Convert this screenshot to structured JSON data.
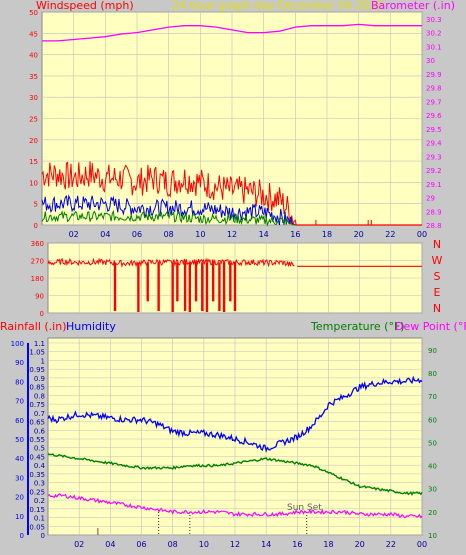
{
  "colors": {
    "background": "#c8c8c8",
    "plot_bg": "#ffffc0",
    "grid": "#c0c0c0",
    "red": "#ff0000",
    "blue": "#0000ff",
    "green": "#008000",
    "magenta": "#ff00ff",
    "dark_blue": "#0000a0",
    "title_yellow": "#e0e000",
    "wind_gust": "#ff0000",
    "wind_avg": "#0000e0",
    "wind_low": "#008000"
  },
  "header": {
    "left": "Windspeed (mph)",
    "center": "24 hour graph day   December 04 2022",
    "right": "Barometer (.in)"
  },
  "direction_letters": [
    "N",
    "W",
    "S",
    "E",
    "N"
  ],
  "bottom_header": {
    "rain": "Rainfall (.in)",
    "humidity": "Humidity",
    "temperature": "Temperature (°F)",
    "dewpoint": "Dew Point (°F)"
  },
  "annotation": "Sun Set",
  "chart_data": [
    {
      "type": "line",
      "name": "wind_and_pressure",
      "x_ticks": [
        "02",
        "04",
        "06",
        "08",
        "10",
        "12",
        "14",
        "16",
        "18",
        "20",
        "22",
        "00"
      ],
      "y_left_ticks": [
        "0",
        "5",
        "10",
        "15",
        "20",
        "25",
        "30",
        "35",
        "40",
        "45",
        "50"
      ],
      "ylim_left": [
        0,
        50
      ],
      "y_right_ticks": [
        "28.8",
        "28.9",
        "29",
        "29.1",
        "29.2",
        "29.3",
        "29.4",
        "29.5",
        "29.6",
        "29.7",
        "29.8",
        "29.9",
        "30",
        "30.1",
        "30.2",
        "30.3"
      ],
      "ylim_right": [
        28.8,
        30.35
      ],
      "xlim": [
        0,
        24
      ],
      "series": [
        {
          "name": "Barometer",
          "axis": "right",
          "x": [
            0,
            1,
            2,
            3,
            4,
            5,
            6,
            7,
            8,
            9,
            10,
            11,
            12,
            13,
            14,
            15,
            16,
            17,
            18,
            19,
            20,
            21,
            22,
            23,
            24
          ],
          "y": [
            30.14,
            30.14,
            30.15,
            30.16,
            30.17,
            30.19,
            30.2,
            30.22,
            30.24,
            30.25,
            30.25,
            30.24,
            30.22,
            30.2,
            30.2,
            30.21,
            30.24,
            30.25,
            30.25,
            30.25,
            30.26,
            30.25,
            30.25,
            30.25,
            30.25
          ]
        },
        {
          "name": "Gust",
          "axis": "left",
          "x": [
            0,
            1,
            2,
            3,
            4,
            5,
            6,
            7,
            8,
            9,
            10,
            11,
            12,
            13,
            14,
            15,
            15.5,
            16,
            17,
            18,
            19,
            20,
            21,
            22,
            23,
            24
          ],
          "y": [
            12,
            12,
            11,
            12,
            11,
            11,
            10,
            11,
            10,
            11,
            10,
            9,
            8,
            8,
            7,
            6,
            4,
            1,
            0,
            0,
            0,
            0,
            0,
            0,
            0,
            0
          ]
        },
        {
          "name": "Average",
          "axis": "left",
          "x": [
            0,
            2,
            4,
            6,
            8,
            10,
            12,
            14,
            15,
            16,
            17,
            24
          ],
          "y": [
            5,
            5,
            5,
            4,
            4,
            4,
            3,
            3,
            2,
            0,
            0,
            0
          ]
        },
        {
          "name": "Low",
          "axis": "left",
          "x": [
            0,
            2,
            4,
            6,
            8,
            10,
            12,
            14,
            15,
            16,
            17,
            24
          ],
          "y": [
            2,
            2,
            2,
            2,
            2,
            1.5,
            1.5,
            1,
            1,
            0,
            0,
            0
          ]
        }
      ]
    },
    {
      "type": "scatter",
      "name": "wind_direction",
      "y_ticks": [
        "0",
        "90",
        "180",
        "270",
        "360"
      ],
      "ylim": [
        0,
        360
      ],
      "xlim": [
        0,
        24
      ],
      "series": [
        {
          "name": "Direction",
          "x": [
            0,
            1,
            2,
            3,
            4,
            5,
            6,
            7,
            8,
            9,
            10,
            11,
            12,
            13,
            14,
            15,
            15.8,
            16,
            24
          ],
          "y": [
            255,
            265,
            260,
            262,
            260,
            255,
            258,
            262,
            260,
            265,
            262,
            262,
            260,
            262,
            258,
            260,
            245,
            240,
            240
          ]
        }
      ]
    },
    {
      "type": "line",
      "name": "temp_humidity_rain",
      "x_ticks": [
        "02",
        "04",
        "06",
        "08",
        "10",
        "12",
        "14",
        "16",
        "18",
        "20",
        "22",
        "00"
      ],
      "y_left_rain_ticks": [
        "0",
        "0.05",
        "0.1",
        "0.15",
        "0.2",
        "0.25",
        "0.3",
        "0.35",
        "0.4",
        "0.45",
        "0.5",
        "0.55",
        "0.6",
        "0.65",
        "0.7",
        "0.75",
        "0.8",
        "0.85",
        "0.9",
        "0.95",
        "1",
        "1.05",
        "1.1"
      ],
      "ylim_rain": [
        0,
        1.1
      ],
      "y_left_humidity_ticks": [
        "0",
        "10",
        "20",
        "30",
        "40",
        "50",
        "60",
        "70",
        "80",
        "90",
        "100"
      ],
      "ylim_humidity": [
        0,
        100
      ],
      "y_right_temp_ticks": [
        "10",
        "20",
        "30",
        "40",
        "50",
        "60",
        "70",
        "80",
        "90"
      ],
      "ylim_temp": [
        10,
        93
      ],
      "xlim": [
        0,
        24
      ],
      "series": [
        {
          "name": "Humidity",
          "axis": "humidity",
          "x": [
            0,
            0.5,
            1,
            2,
            3,
            4,
            5,
            6,
            7,
            8,
            9,
            10,
            11,
            12,
            13,
            14,
            15,
            16,
            16.8,
            17.5,
            18,
            19,
            20,
            21,
            22,
            23,
            24
          ],
          "y": [
            61,
            60,
            61,
            63,
            62,
            61,
            60,
            60,
            58,
            54,
            53,
            53,
            52,
            50,
            48,
            45,
            48,
            51,
            56,
            62,
            68,
            72,
            77,
            79,
            80,
            80,
            81
          ]
        },
        {
          "name": "Temperature",
          "axis": "temp",
          "x": [
            0,
            1,
            2,
            3,
            4,
            5,
            6,
            7,
            8,
            9,
            10,
            11,
            12,
            13,
            14,
            15,
            16,
            17,
            18,
            19,
            20,
            21,
            22,
            23,
            24
          ],
          "y": [
            45,
            44,
            43,
            42,
            41,
            40,
            39,
            39,
            39,
            40,
            40,
            40,
            41,
            42,
            43,
            42,
            41,
            40,
            37,
            34,
            31,
            30,
            29,
            28,
            28
          ]
        },
        {
          "name": "Dew Point",
          "axis": "temp",
          "x": [
            0,
            1,
            2,
            3,
            4,
            5,
            6,
            7,
            8,
            9,
            10,
            11,
            12,
            13,
            14,
            15,
            16,
            17,
            18,
            19,
            20,
            21,
            22,
            23,
            24
          ],
          "y": [
            27,
            27,
            26,
            25,
            24,
            23,
            22,
            21,
            20,
            20,
            20,
            20,
            19,
            19,
            19,
            19,
            20,
            20,
            20,
            20,
            19,
            19,
            19,
            18,
            18
          ]
        }
      ]
    }
  ]
}
